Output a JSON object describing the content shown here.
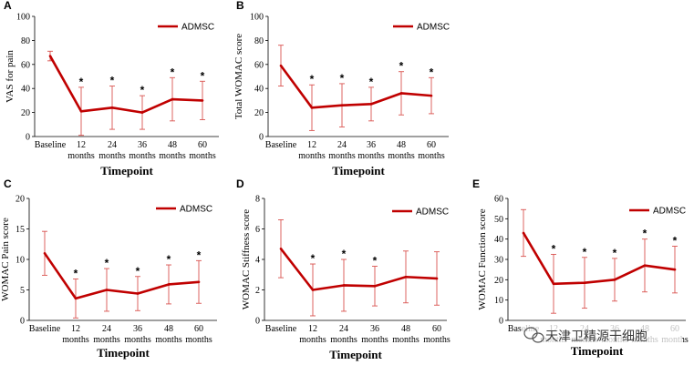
{
  "chart_data": [
    {
      "panel": "A",
      "type": "line",
      "ylabel": "VAS for pain",
      "xlabel": "Timepoint",
      "ylim": [
        0,
        100
      ],
      "ystep": 20,
      "categories": [
        [
          "Baseline"
        ],
        [
          "12",
          "months"
        ],
        [
          "24",
          "months"
        ],
        [
          "36",
          "months"
        ],
        [
          "48",
          "months"
        ],
        [
          "60",
          "months"
        ]
      ],
      "series": [
        {
          "name": "ADMSC",
          "values": [
            67,
            21,
            24,
            20,
            31,
            30
          ],
          "err": [
            4,
            20,
            18,
            14,
            18,
            16
          ]
        }
      ],
      "significant": [
        false,
        true,
        true,
        true,
        true,
        true
      ],
      "star": "*"
    },
    {
      "panel": "B",
      "type": "line",
      "ylabel": "Total WOMAC score",
      "xlabel": "Timepoint",
      "ylim": [
        0,
        100
      ],
      "ystep": 20,
      "categories": [
        [
          "Baseline"
        ],
        [
          "12",
          "months"
        ],
        [
          "24",
          "months"
        ],
        [
          "36",
          "months"
        ],
        [
          "48",
          "months"
        ],
        [
          "60",
          "months"
        ]
      ],
      "series": [
        {
          "name": "ADMSC",
          "values": [
            59,
            24,
            26,
            27,
            36,
            34
          ],
          "err": [
            17,
            19,
            18,
            14,
            18,
            15
          ]
        }
      ],
      "significant": [
        false,
        true,
        true,
        true,
        true,
        true
      ],
      "star": "*"
    },
    {
      "panel": "C",
      "type": "line",
      "ylabel": "WOMAC Pain score",
      "xlabel": "Timepoint",
      "ylim": [
        0,
        20
      ],
      "ystep": 5,
      "categories": [
        [
          "Baseline"
        ],
        [
          "12",
          "months"
        ],
        [
          "24",
          "months"
        ],
        [
          "36",
          "months"
        ],
        [
          "48",
          "months"
        ],
        [
          "60",
          "months"
        ]
      ],
      "series": [
        {
          "name": "ADMSC",
          "values": [
            11,
            3.6,
            5,
            4.4,
            5.9,
            6.3
          ],
          "err": [
            3.6,
            3.2,
            3.5,
            2.8,
            3.2,
            3.5
          ]
        }
      ],
      "significant": [
        false,
        true,
        true,
        true,
        true,
        true
      ],
      "star": "*"
    },
    {
      "panel": "D",
      "type": "line",
      "ylabel": "WOMAC Stiffness score",
      "xlabel": "Timepoint",
      "ylim": [
        0,
        8
      ],
      "ystep": 2,
      "categories": [
        [
          "Baseline"
        ],
        [
          "12",
          "months"
        ],
        [
          "24",
          "months"
        ],
        [
          "36",
          "months"
        ],
        [
          "48",
          "months"
        ],
        [
          "60",
          "months"
        ]
      ],
      "series": [
        {
          "name": "ADMSC",
          "values": [
            4.7,
            2,
            2.3,
            2.25,
            2.85,
            2.75
          ],
          "err": [
            1.9,
            1.7,
            1.7,
            1.3,
            1.7,
            1.75
          ]
        }
      ],
      "significant": [
        false,
        true,
        true,
        true,
        false,
        false
      ],
      "star": "*"
    },
    {
      "panel": "E",
      "type": "line",
      "ylabel": "WOMAC Function score",
      "xlabel": "Timepoint",
      "ylim": [
        0,
        60
      ],
      "ystep": 10,
      "categories": [
        [
          "Baseline"
        ],
        [
          "12",
          "months"
        ],
        [
          "24",
          "months"
        ],
        [
          "36",
          "months"
        ],
        [
          "48",
          "months"
        ],
        [
          "60",
          "months"
        ]
      ],
      "series": [
        {
          "name": "ADMSC",
          "values": [
            43,
            18,
            18.5,
            20,
            27,
            25
          ],
          "err": [
            11.5,
            14.5,
            12.5,
            10.5,
            13,
            11.5
          ]
        }
      ],
      "significant": [
        false,
        true,
        true,
        true,
        true,
        true
      ],
      "star": "*"
    }
  ],
  "style": {
    "line_color": "#c00000"
  },
  "watermark": {
    "text": "天津卫精源干细胞",
    "icon": "wechat-icon"
  }
}
